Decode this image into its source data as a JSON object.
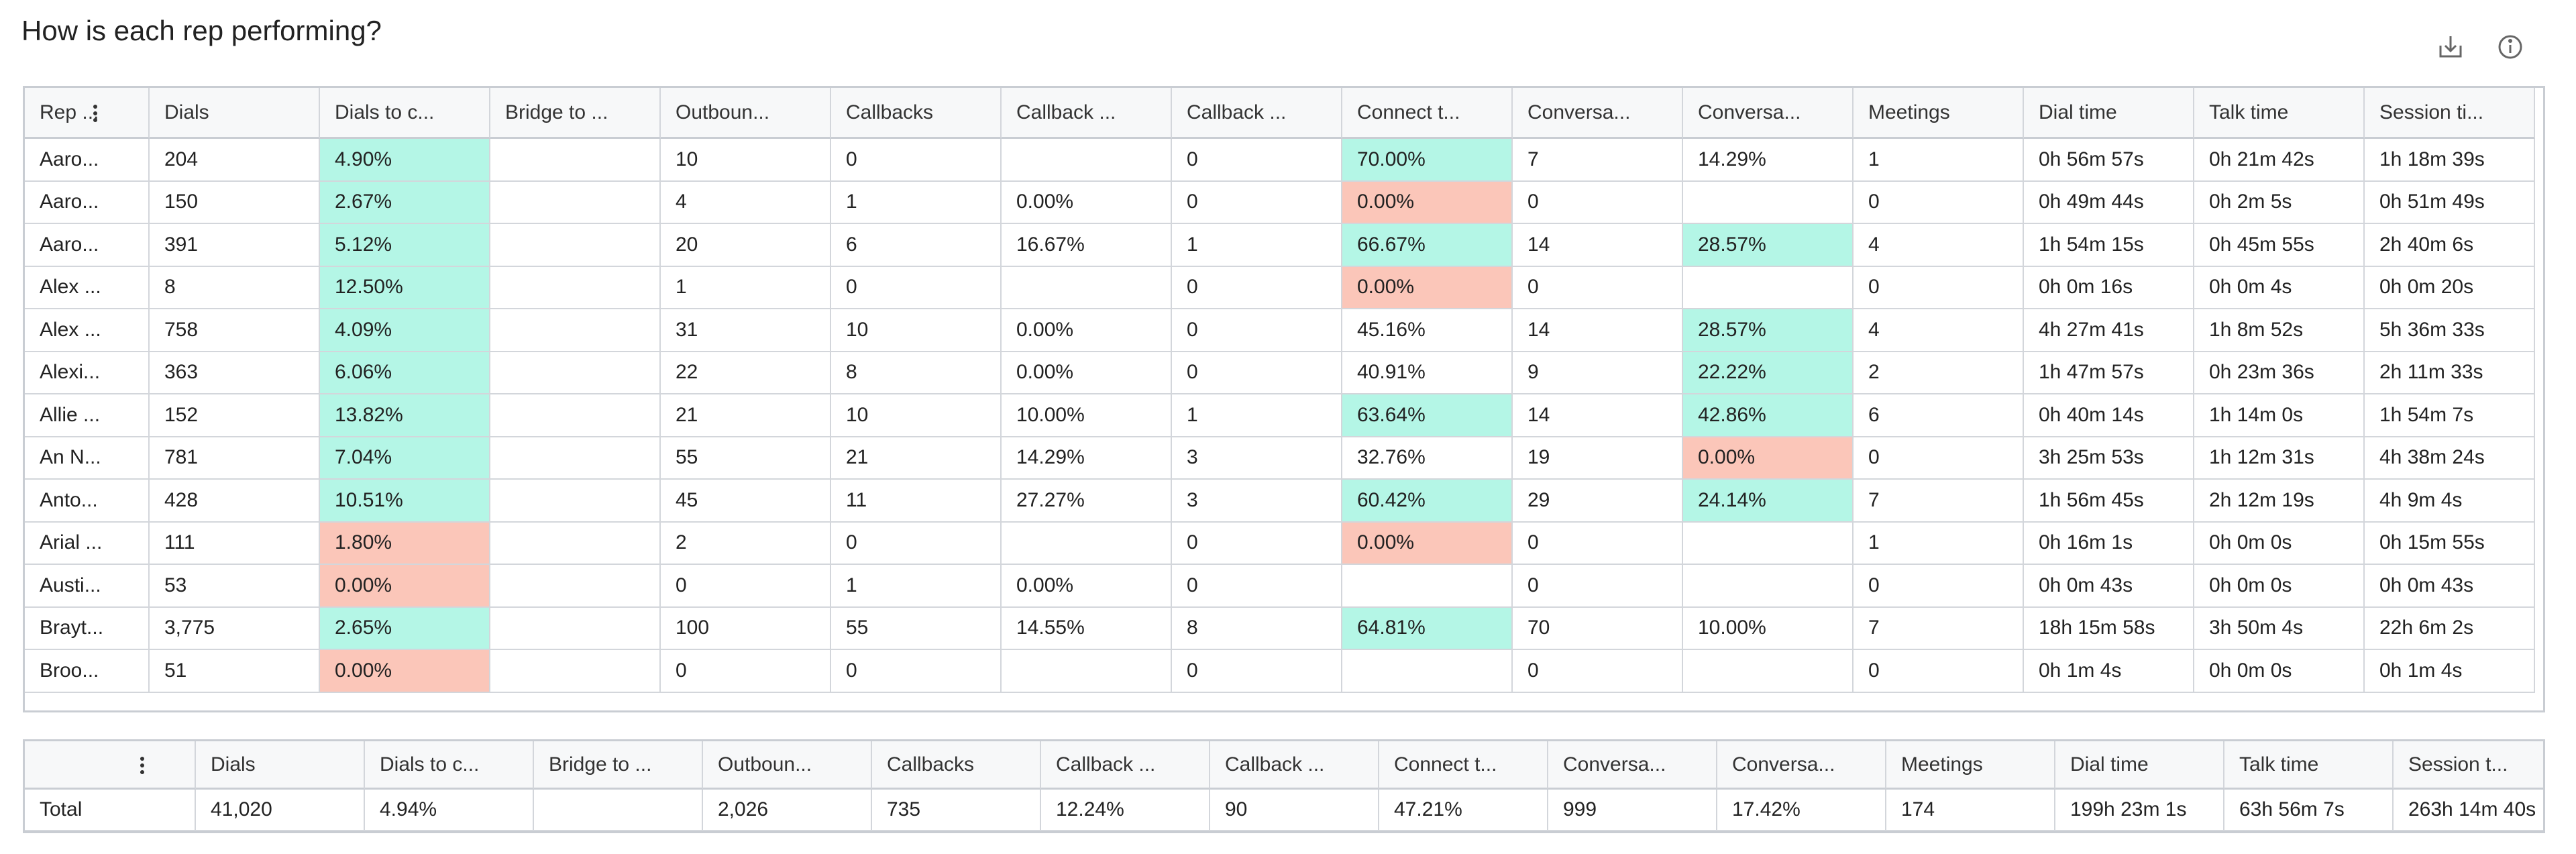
{
  "header": {
    "title": "How is each rep performing?"
  },
  "colors": {
    "good": "#b4f6e6",
    "bad": "#fbc6b9"
  },
  "table": {
    "columns": [
      "Rep ...",
      "Dials",
      "Dials to c...",
      "Bridge to ...",
      "Outboun...",
      "Callbacks",
      "Callback ...",
      "Callback ...",
      "Connect t...",
      "Conversa...",
      "Conversa...",
      "Meetings",
      "Dial time",
      "Talk time",
      "Session ti..."
    ],
    "rows": [
      [
        "Aaro...",
        "204",
        "4.90%",
        null,
        "10",
        "0",
        null,
        "0",
        "70.00%",
        "7",
        "14.29%",
        "1",
        "0h 56m 57s",
        "0h 21m 42s",
        "1h 18m 39s"
      ],
      [
        "Aaro...",
        "150",
        "2.67%",
        null,
        "4",
        "1",
        "0.00%",
        "0",
        "0.00%",
        "0",
        null,
        "0",
        "0h 49m 44s",
        "0h 2m 5s",
        "0h 51m 49s"
      ],
      [
        "Aaro...",
        "391",
        "5.12%",
        null,
        "20",
        "6",
        "16.67%",
        "1",
        "66.67%",
        "14",
        "28.57%",
        "4",
        "1h 54m 15s",
        "0h 45m 55s",
        "2h 40m 6s"
      ],
      [
        "Alex ...",
        "8",
        "12.50%",
        null,
        "1",
        "0",
        null,
        "0",
        "0.00%",
        "0",
        null,
        "0",
        "0h 0m 16s",
        "0h 0m 4s",
        "0h 0m 20s"
      ],
      [
        "Alex ...",
        "758",
        "4.09%",
        null,
        "31",
        "10",
        "0.00%",
        "0",
        "45.16%",
        "14",
        "28.57%",
        "4",
        "4h 27m 41s",
        "1h 8m 52s",
        "5h 36m 33s"
      ],
      [
        "Alexi...",
        "363",
        "6.06%",
        null,
        "22",
        "8",
        "0.00%",
        "0",
        "40.91%",
        "9",
        "22.22%",
        "2",
        "1h 47m 57s",
        "0h 23m 36s",
        "2h 11m 33s"
      ],
      [
        "Allie ...",
        "152",
        "13.82%",
        null,
        "21",
        "10",
        "10.00%",
        "1",
        "63.64%",
        "14",
        "42.86%",
        "6",
        "0h 40m 14s",
        "1h 14m 0s",
        "1h 54m 7s"
      ],
      [
        "An N...",
        "781",
        "7.04%",
        null,
        "55",
        "21",
        "14.29%",
        "3",
        "32.76%",
        "19",
        "0.00%",
        "0",
        "3h 25m 53s",
        "1h 12m 31s",
        "4h 38m 24s"
      ],
      [
        "Anto...",
        "428",
        "10.51%",
        null,
        "45",
        "11",
        "27.27%",
        "3",
        "60.42%",
        "29",
        "24.14%",
        "7",
        "1h 56m 45s",
        "2h 12m 19s",
        "4h 9m 4s"
      ],
      [
        "Arial ...",
        "111",
        "1.80%",
        null,
        "2",
        "0",
        null,
        "0",
        "0.00%",
        "0",
        null,
        "1",
        "0h 16m 1s",
        "0h 0m 0s",
        "0h 15m 55s"
      ],
      [
        "Austi...",
        "53",
        "0.00%",
        null,
        "0",
        "1",
        "0.00%",
        "0",
        null,
        "0",
        null,
        "0",
        "0h 0m 43s",
        "0h 0m 0s",
        "0h 0m 43s"
      ],
      [
        "Brayt...",
        "3,775",
        "2.65%",
        null,
        "100",
        "55",
        "14.55%",
        "8",
        "64.81%",
        "70",
        "10.00%",
        "7",
        "18h 15m 58s",
        "3h 50m 4s",
        "22h 6m 2s"
      ],
      [
        "Broo...",
        "51",
        "0.00%",
        null,
        "0",
        "0",
        null,
        "0",
        null,
        "0",
        null,
        "0",
        "0h 1m 4s",
        "0h 0m 0s",
        "0h 1m 4s"
      ]
    ],
    "fills": [
      [
        null,
        null,
        "good",
        null,
        null,
        null,
        null,
        null,
        "good",
        null,
        null,
        null,
        null,
        null,
        null
      ],
      [
        null,
        null,
        "good",
        null,
        null,
        null,
        null,
        null,
        "bad",
        null,
        null,
        null,
        null,
        null,
        null
      ],
      [
        null,
        null,
        "good",
        null,
        null,
        null,
        null,
        null,
        "good",
        null,
        "good",
        null,
        null,
        null,
        null
      ],
      [
        null,
        null,
        "good",
        null,
        null,
        null,
        null,
        null,
        "bad",
        null,
        null,
        null,
        null,
        null,
        null
      ],
      [
        null,
        null,
        "good",
        null,
        null,
        null,
        null,
        null,
        null,
        null,
        "good",
        null,
        null,
        null,
        null
      ],
      [
        null,
        null,
        "good",
        null,
        null,
        null,
        null,
        null,
        null,
        null,
        "good",
        null,
        null,
        null,
        null
      ],
      [
        null,
        null,
        "good",
        null,
        null,
        null,
        null,
        null,
        "good",
        null,
        "good",
        null,
        null,
        null,
        null
      ],
      [
        null,
        null,
        "good",
        null,
        null,
        null,
        null,
        null,
        null,
        null,
        "bad",
        null,
        null,
        null,
        null
      ],
      [
        null,
        null,
        "good",
        null,
        null,
        null,
        null,
        null,
        "good",
        null,
        "good",
        null,
        null,
        null,
        null
      ],
      [
        null,
        null,
        "bad",
        null,
        null,
        null,
        null,
        null,
        "bad",
        null,
        null,
        null,
        null,
        null,
        null
      ],
      [
        null,
        null,
        "bad",
        null,
        null,
        null,
        null,
        null,
        null,
        null,
        null,
        null,
        null,
        null,
        null
      ],
      [
        null,
        null,
        "good",
        null,
        null,
        null,
        null,
        null,
        "good",
        null,
        null,
        null,
        null,
        null,
        null
      ],
      [
        null,
        null,
        "bad",
        null,
        null,
        null,
        null,
        null,
        null,
        null,
        null,
        null,
        null,
        null,
        null
      ]
    ]
  },
  "totals": {
    "columns": [
      null,
      "Dials",
      "Dials to c...",
      "Bridge to ...",
      "Outboun...",
      "Callbacks",
      "Callback ...",
      "Callback ...",
      "Connect t...",
      "Conversa...",
      "Conversa...",
      "Meetings",
      "Dial time",
      "Talk time",
      "Session t..."
    ],
    "row": [
      "Total",
      "41,020",
      "4.94%",
      null,
      "2,026",
      "735",
      "12.24%",
      "90",
      "47.21%",
      "999",
      "17.42%",
      "174",
      "199h 23m 1s",
      "63h 56m 7s",
      "263h 14m 40s"
    ]
  }
}
